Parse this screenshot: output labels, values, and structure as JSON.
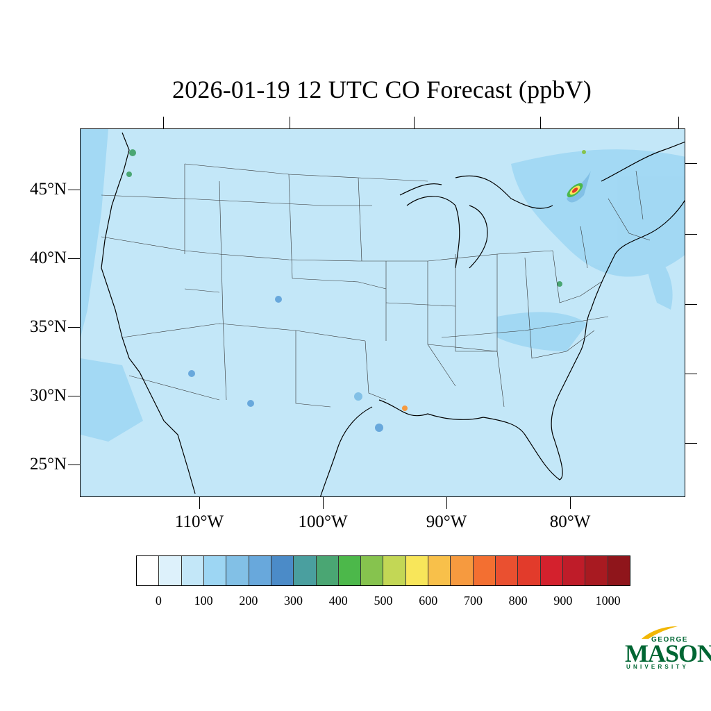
{
  "title": "2026-01-19 12 UTC CO Forecast (ppbV)",
  "map": {
    "lat_labels": [
      "45°N",
      "40°N",
      "35°N",
      "30°N",
      "25°N"
    ],
    "lon_labels": [
      "110°W",
      "100°W",
      "90°W",
      "80°W"
    ],
    "background_color": "#c3e7f8"
  },
  "colorbar": {
    "labels": [
      "0",
      "100",
      "200",
      "300",
      "400",
      "500",
      "600",
      "700",
      "800",
      "900",
      "1000"
    ],
    "colors": [
      "#ffffff",
      "#ddf1fb",
      "#c3e7f8",
      "#9dd6f3",
      "#82c0e6",
      "#68a8dc",
      "#4b8bc8",
      "#4a9f9f",
      "#4aa673",
      "#4cb84a",
      "#86c34e",
      "#c3d755",
      "#f8e65a",
      "#f8c04a",
      "#f69a3f",
      "#f36f31",
      "#ea5030",
      "#e23b2b",
      "#d4212d",
      "#bf1c29",
      "#a81a21",
      "#8f151b"
    ]
  },
  "logo": {
    "line1": "GEORGE",
    "line2": "MASON",
    "line3": "UNIVERSITY"
  }
}
